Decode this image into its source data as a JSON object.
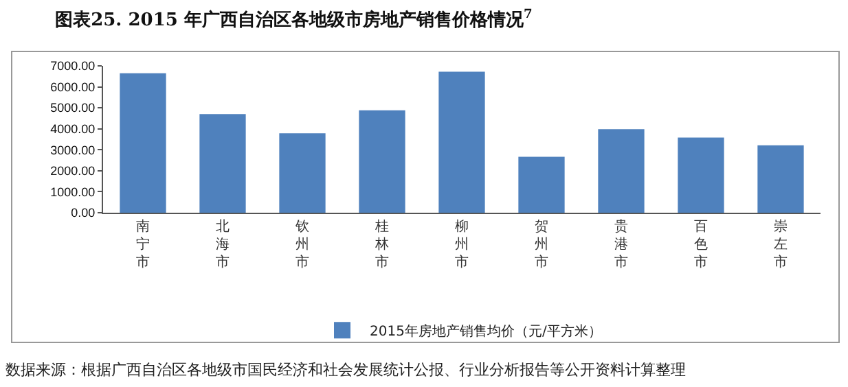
{
  "chart_data": {
    "type": "bar",
    "title": "图表25. 2015 年广西自治区各地级市房地产销售价格情况$^{7}$",
    "categories": [
      "南宁市",
      "北海市",
      "钦州市",
      "桂林市",
      "柳州市",
      "贺州市",
      "贵港市",
      "百色市",
      "崇左市"
    ],
    "series": [
      {
        "name": "2015年房地产销售均价（元/平方米）",
        "color": "#4f81bd",
        "values": [
          6650,
          4700,
          3790,
          4880,
          6720,
          2670,
          3980,
          3580,
          3210
        ]
      }
    ],
    "ylim": [
      0,
      7000
    ],
    "yticks": [
      {
        "value": 0,
        "label": "0.00"
      },
      {
        "value": 1000,
        "label": "1000.00"
      },
      {
        "value": 2000,
        "label": "2000.00"
      },
      {
        "value": 3000,
        "label": "3000.00"
      },
      {
        "value": 4000,
        "label": "4000.00"
      },
      {
        "value": 5000,
        "label": "5000.00"
      },
      {
        "value": 6000,
        "label": "6000.00"
      },
      {
        "value": 7000,
        "label": "7000.00"
      }
    ],
    "grid": false,
    "legend": "bottom",
    "annotations": [
      "数据来源：根据广西自治区各地级市国民经济和社会发展统计公报、行业分析报告等公开资料计算整理"
    ]
  }
}
